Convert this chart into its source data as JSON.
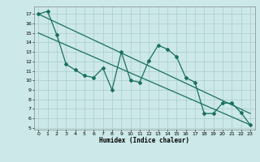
{
  "title": "",
  "xlabel": "Humidex (Indice chaleur)",
  "ylabel": "",
  "bg_color": "#cce8e8",
  "grid_color": "#aacccc",
  "line_color": "#1a7060",
  "xlim": [
    -0.5,
    23.5
  ],
  "ylim": [
    4.8,
    17.8
  ],
  "yticks": [
    5,
    6,
    7,
    8,
    9,
    10,
    11,
    12,
    13,
    14,
    15,
    16,
    17
  ],
  "xticks": [
    0,
    1,
    2,
    3,
    4,
    5,
    6,
    7,
    8,
    9,
    10,
    11,
    12,
    13,
    14,
    15,
    16,
    17,
    18,
    19,
    20,
    21,
    22,
    23
  ],
  "main_x": [
    0,
    1,
    2,
    3,
    4,
    5,
    6,
    7,
    8,
    9,
    10,
    11,
    12,
    13,
    14,
    15,
    16,
    17,
    18,
    19,
    20,
    21,
    22,
    23
  ],
  "main_y": [
    17.0,
    17.3,
    14.8,
    11.7,
    11.1,
    10.5,
    10.3,
    11.3,
    9.0,
    13.0,
    10.0,
    9.8,
    12.1,
    13.7,
    13.3,
    12.5,
    10.3,
    9.8,
    6.5,
    6.5,
    7.6,
    7.6,
    6.6,
    5.3
  ],
  "trend1_x": [
    0,
    23
  ],
  "trend1_y": [
    17.0,
    6.5
  ],
  "trend2_x": [
    0,
    23
  ],
  "trend2_y": [
    15.0,
    5.3
  ]
}
